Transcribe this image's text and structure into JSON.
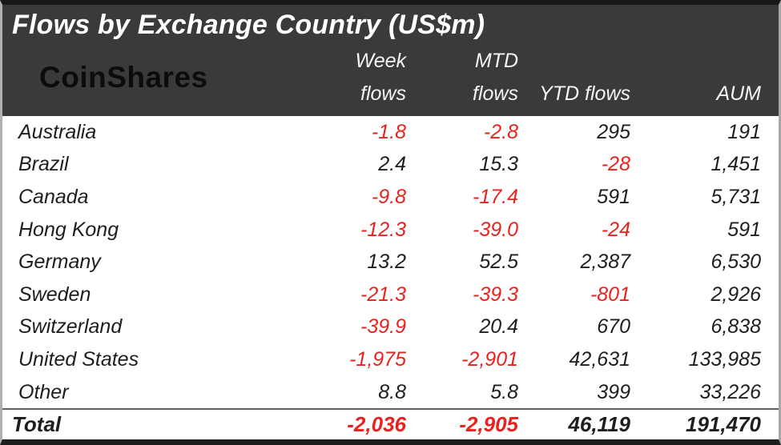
{
  "logo": {
    "text": "CoinShares"
  },
  "colors": {
    "header_bg": "#3a3a3a",
    "title_text": "#ffffff",
    "body_text": "#1e1e1e",
    "negative": "#e8231f",
    "border_dark": "#181818",
    "border_gray": "#b0b0b0"
  },
  "chart_data": {
    "type": "table",
    "title": "Flows by Exchange Country (US$m)",
    "column_headers": {
      "week": [
        "Week",
        "flows"
      ],
      "mtd": [
        "MTD",
        "flows"
      ],
      "ytd": "YTD flows",
      "aum": "AUM"
    },
    "rows": [
      {
        "country": "Australia",
        "week": "-1.8",
        "mtd": "-2.8",
        "ytd": "295",
        "aum": "191"
      },
      {
        "country": "Brazil",
        "week": "2.4",
        "mtd": "15.3",
        "ytd": "-28",
        "aum": "1,451"
      },
      {
        "country": "Canada",
        "week": "-9.8",
        "mtd": "-17.4",
        "ytd": "591",
        "aum": "5,731"
      },
      {
        "country": "Hong Kong",
        "week": "-12.3",
        "mtd": "-39.0",
        "ytd": "-24",
        "aum": "591"
      },
      {
        "country": "Germany",
        "week": "13.2",
        "mtd": "52.5",
        "ytd": "2,387",
        "aum": "6,530"
      },
      {
        "country": "Sweden",
        "week": "-21.3",
        "mtd": "-39.3",
        "ytd": "-801",
        "aum": "2,926"
      },
      {
        "country": "Switzerland",
        "week": "-39.9",
        "mtd": "20.4",
        "ytd": "670",
        "aum": "6,838"
      },
      {
        "country": "United States",
        "week": "-1,975",
        "mtd": "-2,901",
        "ytd": "42,631",
        "aum": "133,985"
      },
      {
        "country": "Other",
        "week": "8.8",
        "mtd": "5.8",
        "ytd": "399",
        "aum": "33,226"
      }
    ],
    "total": {
      "label": "Total",
      "week": "-2,036",
      "mtd": "-2,905",
      "ytd": "46,119",
      "aum": "191,470"
    }
  }
}
